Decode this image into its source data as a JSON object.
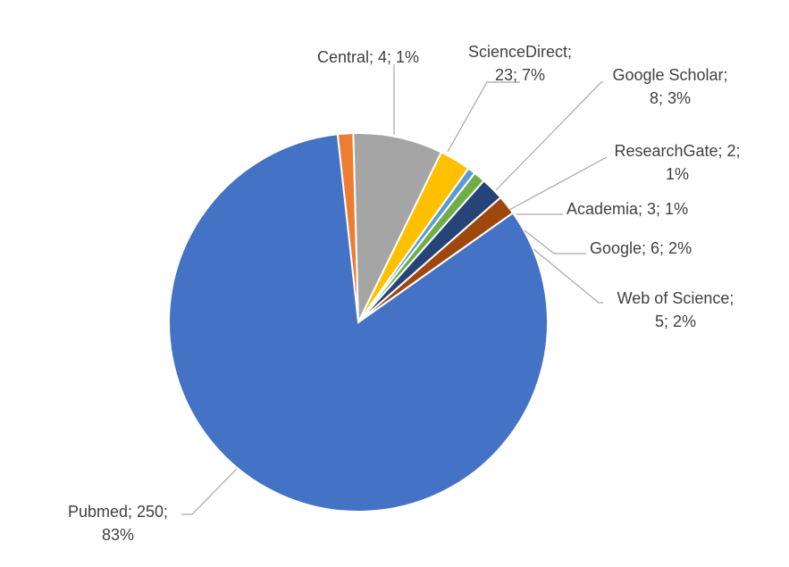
{
  "chart_data": {
    "type": "pie",
    "title": "",
    "legend": "none",
    "slices": [
      {
        "name": "Central",
        "value": 4,
        "percent": "1%",
        "color": "#ED7D31",
        "label_lines": [
          "Central; 4; 1%"
        ]
      },
      {
        "name": "ScienceDirect",
        "value": 23,
        "percent": "7%",
        "color": "#A5A5A5",
        "label_lines": [
          "ScienceDirect;",
          "23; 7%"
        ]
      },
      {
        "name": "Google Scholar",
        "value": 8,
        "percent": "3%",
        "color": "#FFC000",
        "label_lines": [
          "Google Scholar;",
          "8; 3%"
        ]
      },
      {
        "name": "ResearchGate",
        "value": 2,
        "percent": "1%",
        "color": "#5B9BD5",
        "label_lines": [
          "ResearchGate; 2;",
          "1%"
        ]
      },
      {
        "name": "Academia",
        "value": 3,
        "percent": "1%",
        "color": "#70AD47",
        "label_lines": [
          "Academia; 3; 1%"
        ]
      },
      {
        "name": "Google",
        "value": 6,
        "percent": "2%",
        "color": "#264478",
        "label_lines": [
          "Google; 6; 2%"
        ]
      },
      {
        "name": "Web of Science",
        "value": 5,
        "percent": "2%",
        "color": "#9E480E",
        "label_lines": [
          "Web of Science;",
          "5; 2%"
        ]
      },
      {
        "name": "Pubmed",
        "value": 250,
        "percent": "83%",
        "color": "#4472C4",
        "label_lines": [
          "Pubmed; 250;",
          "83%"
        ]
      }
    ]
  }
}
